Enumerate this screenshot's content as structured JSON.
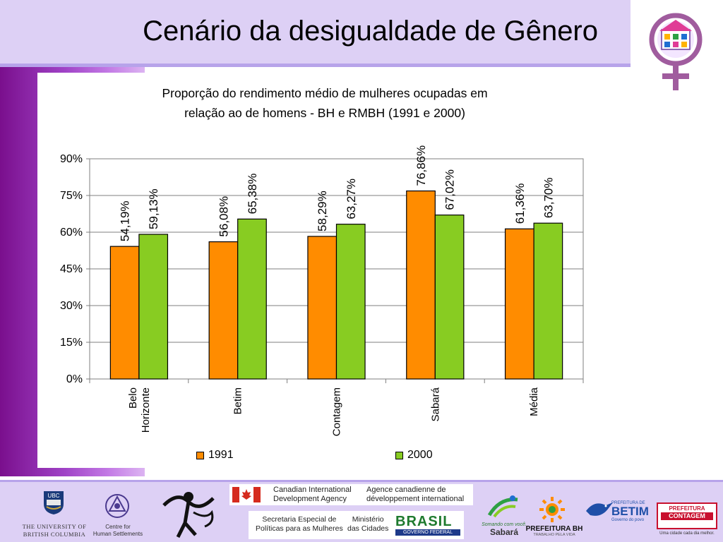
{
  "page": {
    "title": "Cenário da desigualdade de Gênero"
  },
  "chart_data": {
    "type": "bar",
    "title_line1": "Proporção do rendimento médio de mulheres ocupadas em",
    "title_line2": "relação ao de homens - BH e RMBH (1991 e 2000)",
    "categories": [
      [
        "Belo",
        "Horizonte"
      ],
      [
        "Betim"
      ],
      [
        "Contagem"
      ],
      [
        "Sabará"
      ],
      [
        "Média"
      ]
    ],
    "series": [
      {
        "name": "1991",
        "values": [
          54.19,
          56.08,
          58.29,
          76.86,
          61.36
        ],
        "labels": [
          "54,19%",
          "56,08%",
          "58,29%",
          "76,86%",
          "61,36%"
        ],
        "color": "#ff8c00"
      },
      {
        "name": "2000",
        "values": [
          59.13,
          65.38,
          63.27,
          67.02,
          63.7
        ],
        "labels": [
          "59,13%",
          "65,38%",
          "63,27%",
          "67,02%",
          "63,70%"
        ],
        "color": "#88cc22"
      }
    ],
    "ylim": [
      0,
      90
    ],
    "yticks": [
      0,
      15,
      30,
      45,
      60,
      75,
      90
    ],
    "ytick_labels": [
      "0%",
      "15%",
      "30%",
      "45%",
      "60%",
      "75%",
      "90%"
    ],
    "grid": true,
    "legend_position": "bottom"
  },
  "footer": {
    "ubc_line1": "THE UNIVERSITY OF",
    "ubc_line2": "BRITISH COLUMBIA",
    "ubc_mark": "UBC",
    "chs_line1": "Centre for",
    "chs_line2": "Human Settlements",
    "cida_en_line1": "Canadian International",
    "cida_en_line2": "Development Agency",
    "cida_fr_line1": "Agence canadienne de",
    "cida_fr_line2": "développement international",
    "sep_line1": "Secretaria Especial de",
    "sep_line2": "Políticas para as Mulheres",
    "mc_line1": "Ministério",
    "mc_line2": "das Cidades",
    "brasil_text": "BRASIL",
    "brasil_sub": "GOVERNO FEDERAL",
    "sabara_line1": "Somando com você.",
    "sabara_line2": "Sabará",
    "pbh_text": "PREFEITURA BH",
    "pbh_sub": "TRABALHO PELA VIDA",
    "betim_small": "PREFEITURA DE",
    "betim_text": "BETIM",
    "betim_sub": "Governo do povo",
    "contagem_line1": "PREFEITURA",
    "contagem_line2": "CONTAGEM",
    "contagem_sub": "Uma cidade cada dia melhor."
  },
  "colors": {
    "title_band": "#ddd0f5",
    "bar_1991": "#ff8c00",
    "bar_2000": "#88cc22"
  }
}
